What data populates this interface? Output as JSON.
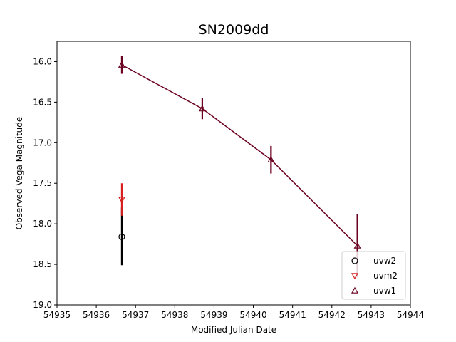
{
  "chart_data": {
    "type": "scatter",
    "title": "SN2009dd",
    "xlabel": "Modified Julian Date",
    "ylabel": "Observed Vega Magnitude",
    "xlim": [
      54935,
      54944
    ],
    "ylim": [
      19.0,
      15.75
    ],
    "y_inverted": true,
    "xticks": [
      "54935",
      "54936",
      "54937",
      "54938",
      "54939",
      "54940",
      "54941",
      "54942",
      "54943",
      "54944"
    ],
    "yticks": [
      "16.0",
      "16.5",
      "17.0",
      "17.5",
      "18.0",
      "18.5",
      "19.0"
    ],
    "legend_position": "lower-right",
    "series": [
      {
        "name": "uvw2",
        "color": "#000000",
        "marker": "circle",
        "line": false,
        "points": [
          {
            "x": 54936.65,
            "y": 18.16,
            "err_low": 0.36,
            "err_high": 0.35
          }
        ]
      },
      {
        "name": "uvm2",
        "color": "#d62020",
        "marker": "triangle-down",
        "line": false,
        "points": [
          {
            "x": 54936.65,
            "y": 17.7,
            "err_low": 0.2,
            "err_high": 0.2
          }
        ]
      },
      {
        "name": "uvw1",
        "color": "#6b0020",
        "marker": "triangle-up",
        "line": true,
        "points": [
          {
            "x": 54936.65,
            "y": 16.04,
            "err_low": 0.11,
            "err_high": 0.11
          },
          {
            "x": 54938.7,
            "y": 16.58,
            "err_low": 0.13,
            "err_high": 0.13
          },
          {
            "x": 54940.45,
            "y": 17.21,
            "err_low": 0.17,
            "err_high": 0.17
          },
          {
            "x": 54942.65,
            "y": 18.27,
            "err_low": 0.39,
            "err_high": 0.39
          }
        ]
      }
    ]
  }
}
